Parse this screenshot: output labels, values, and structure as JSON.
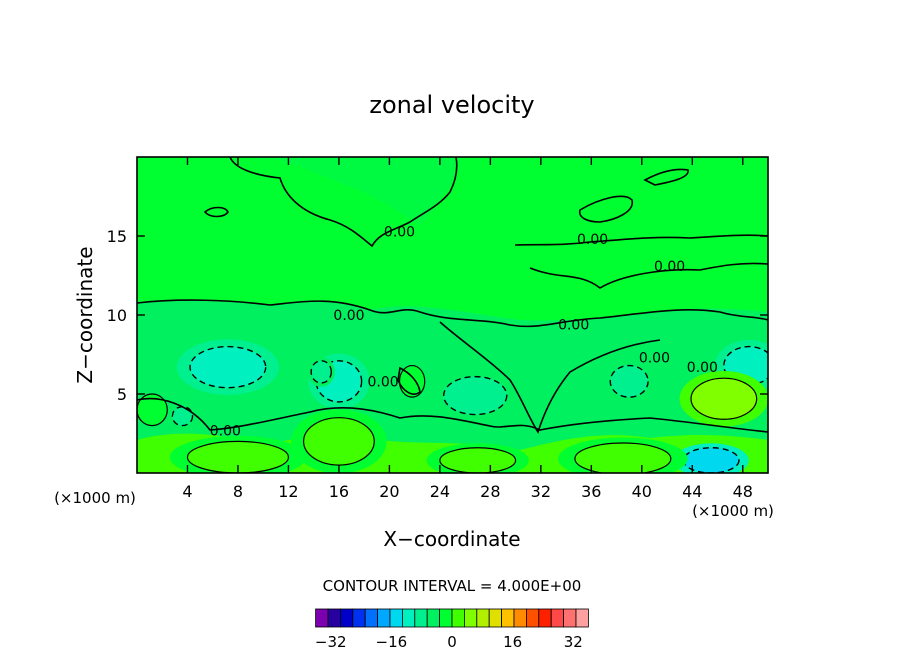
{
  "chart_data": {
    "type": "contour",
    "title": "zonal velocity",
    "xlabel": "X−coordinate",
    "ylabel": "Z−coordinate",
    "x_units": "(×1000 m)",
    "x_units_left": "(×1000 m)",
    "xlim": [
      0,
      50
    ],
    "ylim": [
      0,
      20
    ],
    "x_ticks": [
      4,
      8,
      12,
      16,
      20,
      24,
      28,
      32,
      36,
      40,
      44,
      48
    ],
    "y_ticks": [
      5,
      10,
      15
    ],
    "contour_interval_text": "CONTOUR INTERVAL = 4.000E+00",
    "contour_interval": 4,
    "colorbar": {
      "min": -36,
      "max": 36,
      "step": 4,
      "ticks": [
        -32,
        -16,
        0,
        16,
        32
      ],
      "colors": [
        "#7a00b0",
        "#2800a0",
        "#0000c8",
        "#0030f0",
        "#0070ff",
        "#00a8ff",
        "#00d8f0",
        "#00f0c0",
        "#00f090",
        "#00f060",
        "#00ff30",
        "#40ff00",
        "#80ff00",
        "#b0f000",
        "#e0e000",
        "#ffc000",
        "#ff8c00",
        "#ff5000",
        "#ff2000",
        "#ff4848",
        "#ff7070",
        "#ffa0a0"
      ]
    },
    "contour_labels": [
      {
        "text": "0.00",
        "x": 16.8,
        "y": 10.0
      },
      {
        "text": "0.00",
        "x": 20.8,
        "y": 15.3
      },
      {
        "text": "0.00",
        "x": 36.1,
        "y": 14.8
      },
      {
        "text": "0.00",
        "x": 42.2,
        "y": 13.1
      },
      {
        "text": "0.00",
        "x": 34.6,
        "y": 9.4
      },
      {
        "text": "0.00",
        "x": 41.0,
        "y": 7.3
      },
      {
        "text": "0.00",
        "x": 44.8,
        "y": 6.7
      },
      {
        "text": "0.00",
        "x": 19.5,
        "y": 5.8
      },
      {
        "text": "0.00",
        "x": 7.0,
        "y": 2.7
      }
    ],
    "features": [
      {
        "value": -8,
        "x": 7.2,
        "y": 6.7,
        "rx": 3.0,
        "ry": 1.3
      },
      {
        "value": -8,
        "x": 16.0,
        "y": 5.8,
        "rx": 1.8,
        "ry": 1.3
      },
      {
        "value": -4,
        "x": 26.8,
        "y": 4.9,
        "rx": 2.5,
        "ry": 1.2
      },
      {
        "value": -4,
        "x": 39.0,
        "y": 5.8,
        "rx": 1.5,
        "ry": 1.0
      },
      {
        "value": -8,
        "x": 48.5,
        "y": 6.8,
        "rx": 2.0,
        "ry": 1.2
      },
      {
        "value": -12,
        "x": 45.5,
        "y": 0.8,
        "rx": 2.2,
        "ry": 0.8
      },
      {
        "value": 12,
        "x": 46.5,
        "y": 4.7,
        "rx": 2.6,
        "ry": 1.3
      },
      {
        "value": 8,
        "x": 16.0,
        "y": 2.0,
        "rx": 2.8,
        "ry": 1.5
      },
      {
        "value": 8,
        "x": 8.0,
        "y": 1.0,
        "rx": 4.0,
        "ry": 1.0
      },
      {
        "value": 8,
        "x": 27.0,
        "y": 0.8,
        "rx": 3.0,
        "ry": 0.8
      },
      {
        "value": 8,
        "x": 38.5,
        "y": 0.9,
        "rx": 3.8,
        "ry": 1.0
      },
      {
        "value": -4,
        "x": 3.6,
        "y": 3.6,
        "rx": 0.8,
        "ry": 0.6
      },
      {
        "value": 4,
        "x": 1.2,
        "y": 4.0,
        "rx": 1.2,
        "ry": 1.0
      },
      {
        "value": -4,
        "x": 14.6,
        "y": 6.4,
        "rx": 0.8,
        "ry": 0.7
      },
      {
        "value": 4,
        "x": 21.8,
        "y": 5.8,
        "rx": 1.0,
        "ry": 1.0
      }
    ]
  }
}
